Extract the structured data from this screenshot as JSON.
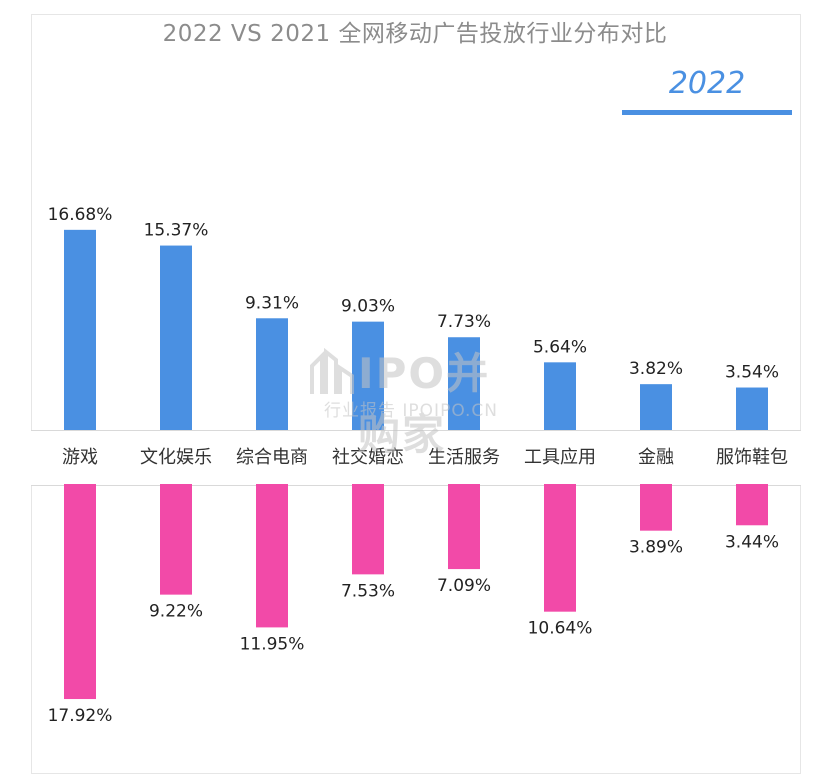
{
  "chart_data": {
    "type": "bar",
    "title": "2022 VS 2021 全网移动广告投放行业分布对比",
    "categories": [
      "游戏",
      "文化娱乐",
      "综合电商",
      "社交婚恋",
      "生活服务",
      "工具应用",
      "金融",
      "服饰鞋包"
    ],
    "series": [
      {
        "name": "2022",
        "values": [
          16.68,
          15.37,
          9.31,
          9.03,
          7.73,
          5.64,
          3.82,
          3.54
        ],
        "labels": [
          "16.68%",
          "15.37%",
          "9.31%",
          "9.03%",
          "7.73%",
          "5.64%",
          "3.82%",
          "3.54%"
        ],
        "color": "#4a90e2",
        "direction": "up"
      },
      {
        "values": [
          17.92,
          9.22,
          11.95,
          7.53,
          7.09,
          10.64,
          3.89,
          3.44
        ],
        "labels": [
          "17.92%",
          "9.22%",
          "11.95%",
          "7.53%",
          "7.09%",
          "10.64%",
          "3.89%",
          "3.44%"
        ],
        "color": "#f24aa8",
        "direction": "down"
      }
    ],
    "legend": {
      "label": "2022",
      "position": "top-right"
    },
    "grid": false
  },
  "watermark": {
    "main": "IPO并购家",
    "sub": "行业报告 IPOIPO.CN"
  }
}
